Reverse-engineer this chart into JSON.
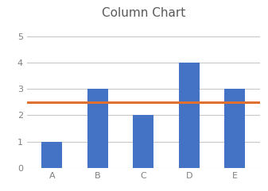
{
  "title": "Column Chart",
  "categories": [
    "A",
    "B",
    "C",
    "D",
    "E"
  ],
  "values": [
    1,
    3,
    2,
    4,
    3
  ],
  "bar_color": "#4472C4",
  "hline_y": 2.5,
  "hline_color": "#E07030",
  "hline_linewidth": 2.2,
  "ylim": [
    0,
    5.5
  ],
  "yticks": [
    0,
    1,
    2,
    3,
    4,
    5
  ],
  "grid_color": "#C8C8C8",
  "background_color": "#FFFFFF",
  "title_fontsize": 11,
  "tick_fontsize": 8,
  "tick_color": "#7F7F7F",
  "bar_width": 0.45,
  "xlim_left": -0.55,
  "xlim_right": 4.55
}
